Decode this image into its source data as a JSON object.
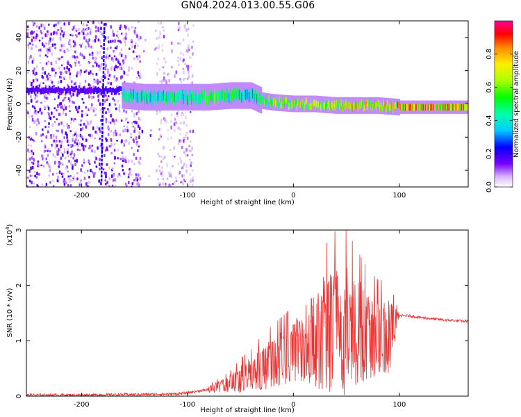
{
  "title": "GN04.2024.013.00.55.G06",
  "chart_data": [
    {
      "type": "heatmap",
      "xlabel": "Height of straight line (km)",
      "ylabel": "Frequency (Hz)",
      "xlim": [
        -252,
        165
      ],
      "ylim": [
        -50,
        50
      ],
      "xticks": [
        -200,
        -100,
        0,
        100
      ],
      "yticks": [
        -40,
        -20,
        0,
        20,
        40
      ],
      "colorbar": {
        "label": "Normalized spectral amplitude",
        "range": [
          0,
          1
        ],
        "ticks": [
          "0.0",
          "0.2",
          "0.4",
          "0.6",
          "0.8"
        ],
        "tick_values": [
          0.0,
          0.2,
          0.4,
          0.6,
          0.8
        ]
      },
      "ridge": {
        "height_km": [
          -160,
          -140,
          -120,
          -100,
          -80,
          -60,
          -40,
          -30,
          -20,
          0,
          20,
          40,
          60,
          80,
          100,
          120,
          140,
          165
        ],
        "frequency_hz": [
          5,
          4,
          4,
          4,
          4,
          5,
          5,
          2,
          1,
          0,
          0,
          -1,
          -1,
          -1,
          -2,
          -2,
          -2,
          -2
        ],
        "amplitude": [
          0.5,
          0.5,
          0.5,
          0.5,
          0.6,
          0.55,
          0.45,
          0.6,
          0.7,
          0.8,
          0.75,
          0.7,
          0.85,
          0.8,
          0.9,
          0.95,
          0.95,
          0.95
        ]
      }
    },
    {
      "type": "line",
      "xlabel": "Height of straight line (km)",
      "ylabel": "SNR (10 * v/v)",
      "yscale_label": "(x10",
      "yscale_exp": "4",
      "xlim": [
        -252,
        165
      ],
      "ylim": [
        0,
        3
      ],
      "xticks": [
        -200,
        -100,
        0,
        100
      ],
      "yticks": [
        0,
        1,
        2,
        3
      ],
      "color": "#ee3333",
      "series": [
        {
          "x": [
            -252,
            -200,
            -150,
            -110,
            -100,
            -80,
            -60,
            -50,
            -40,
            -30,
            -20,
            -10,
            0,
            10,
            20,
            30,
            40,
            50,
            60,
            70,
            80,
            90,
            100,
            110,
            120,
            140,
            165
          ],
          "y": [
            0.02,
            0.02,
            0.03,
            0.04,
            0.06,
            0.12,
            0.22,
            0.3,
            0.4,
            0.5,
            0.6,
            0.7,
            0.8,
            0.95,
            1.05,
            1.15,
            1.2,
            1.2,
            1.15,
            1.1,
            1.05,
            1.05,
            1.45,
            1.45,
            1.42,
            1.38,
            1.35
          ],
          "spread": [
            0.0,
            0.0,
            0.01,
            0.01,
            0.02,
            0.06,
            0.15,
            0.25,
            0.3,
            0.4,
            0.45,
            0.5,
            0.55,
            0.7,
            0.9,
            1.05,
            1.2,
            1.2,
            1.0,
            0.8,
            0.7,
            0.7,
            0.04,
            0.04,
            0.04,
            0.04,
            0.04
          ]
        }
      ]
    }
  ]
}
